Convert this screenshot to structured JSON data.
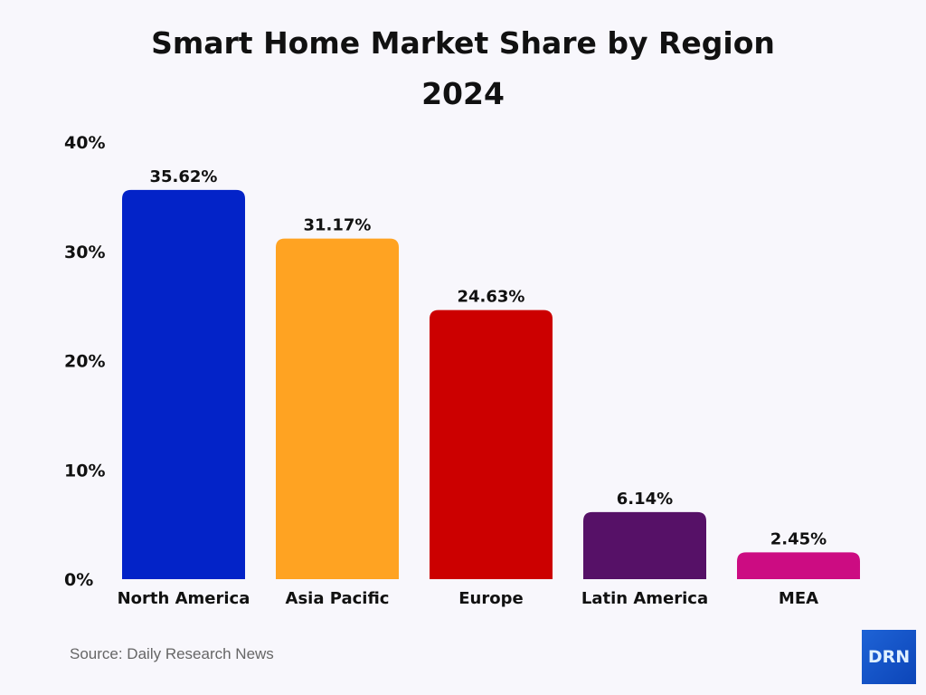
{
  "chart_data": {
    "type": "bar",
    "title": "Smart Home Market Share by Region",
    "subtitle": "2024",
    "categories": [
      "North America",
      "Asia Pacific",
      "Europe",
      "Latin America",
      "MEA"
    ],
    "values": [
      35.62,
      31.17,
      24.63,
      6.14,
      2.45
    ],
    "data_labels": [
      "35.62%",
      "31.17%",
      "24.63%",
      "6.14%",
      "2.45%"
    ],
    "colors": [
      "#0323c8",
      "#ffa322",
      "#cc0000",
      "#561167",
      "#cc0c82"
    ],
    "yticks": [
      0,
      10,
      20,
      30,
      40
    ],
    "ytick_labels": [
      "0%",
      "10%",
      "20%",
      "30%",
      "40%"
    ],
    "ylim": [
      0,
      40
    ],
    "xlabel": "",
    "ylabel": "",
    "grid": false,
    "legend": "none"
  },
  "footer": {
    "source": "Source: Daily Research News",
    "logo_text": "DRN"
  }
}
